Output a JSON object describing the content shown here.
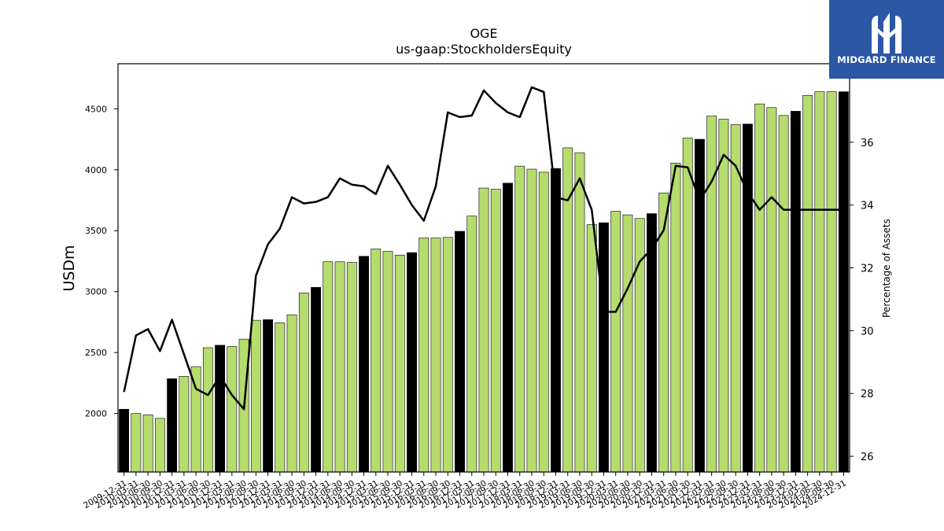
{
  "brand": {
    "name": "MIDGARD FINANCE",
    "logo_icon": "midgard-logo-icon",
    "background": "#2b57a5"
  },
  "chart_data": {
    "type": "bar+line",
    "title": "OGE",
    "subtitle": "us-gaap:StockholdersEquity",
    "ylabel": "USDm",
    "y2label": "Percentage of Assets",
    "ylim": [
      1520,
      4870
    ],
    "y2lim": [
      25.5,
      38.5
    ],
    "yticks": [
      2000,
      2500,
      3000,
      3500,
      4000,
      4500
    ],
    "y2ticks": [
      26,
      28,
      30,
      32,
      34,
      36
    ],
    "colors": {
      "bar_fiscal_year_end": "#000000",
      "bar_quarter": "#b5dc6c",
      "line": "#000000"
    },
    "categories": [
      "2009-12-31",
      "2010-03-31",
      "2010-06-30",
      "2010-09-30",
      "2010-12-31",
      "2011-03-31",
      "2011-06-30",
      "2011-09-30",
      "2011-12-31",
      "2012-03-31",
      "2012-06-30",
      "2012-09-30",
      "2012-12-31",
      "2013-03-31",
      "2013-06-30",
      "2013-09-30",
      "2013-12-31",
      "2014-03-31",
      "2014-06-30",
      "2014-09-30",
      "2014-12-31",
      "2015-03-31",
      "2015-06-30",
      "2015-09-30",
      "2015-12-31",
      "2016-03-31",
      "2016-06-30",
      "2016-09-30",
      "2016-12-31",
      "2017-03-31",
      "2017-06-30",
      "2017-09-30",
      "2017-12-31",
      "2018-03-31",
      "2018-06-30",
      "2018-09-30",
      "2018-12-31",
      "2019-03-31",
      "2019-06-30",
      "2019-09-30",
      "2019-12-31",
      "2020-03-31",
      "2020-06-30",
      "2020-09-30",
      "2020-12-31",
      "2021-03-31",
      "2021-06-30",
      "2021-09-30",
      "2021-12-31",
      "2022-03-31",
      "2022-06-30",
      "2022-09-30",
      "2022-12-31",
      "2023-03-31",
      "2023-06-30",
      "2023-09-30",
      "2023-12-31",
      "2024-03-31",
      "2024-06-30",
      "2024-09-30",
      "2024-12-31"
    ],
    "series": [
      {
        "kind": "bar",
        "axis": "left",
        "values": [
          2035,
          2000,
          1990,
          1960,
          2285,
          2305,
          2385,
          2540,
          2560,
          2550,
          2610,
          2765,
          2770,
          2745,
          2810,
          2990,
          3035,
          3245,
          3245,
          3240,
          3290,
          3350,
          3330,
          3300,
          3320,
          3440,
          3440,
          3445,
          3495,
          3620,
          3850,
          3840,
          3890,
          4030,
          4005,
          3980,
          4010,
          4180,
          4140,
          3550,
          3565,
          3660,
          3630,
          3600,
          3640,
          3810,
          4055,
          4260,
          4250,
          4440,
          4415,
          4370,
          4375,
          4540,
          4510,
          4445,
          4480,
          4610,
          4640,
          4640,
          4640
        ]
      },
      {
        "kind": "line",
        "axis": "right",
        "values": [
          28.05,
          29.85,
          30.05,
          29.35,
          30.35,
          29.25,
          28.15,
          27.95,
          28.55,
          27.95,
          27.5,
          31.75,
          32.75,
          33.25,
          34.25,
          34.05,
          34.1,
          34.25,
          34.85,
          34.65,
          34.6,
          34.35,
          35.25,
          34.65,
          34.0,
          33.5,
          34.6,
          36.95,
          36.8,
          36.85,
          37.65,
          37.25,
          36.95,
          36.8,
          37.75,
          37.6,
          34.25,
          34.15,
          34.85,
          33.85,
          30.6,
          30.6,
          31.35,
          32.2,
          32.6,
          33.2,
          35.25,
          35.2,
          34.15,
          34.75,
          35.6,
          35.25,
          34.4,
          33.85,
          34.25,
          33.85,
          33.85,
          33.85,
          33.85,
          33.85,
          33.85
        ]
      }
    ]
  }
}
